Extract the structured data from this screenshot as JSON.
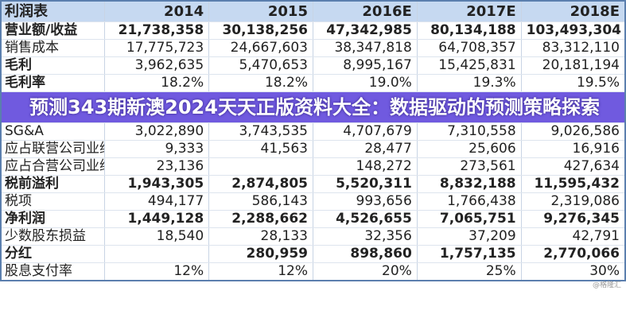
{
  "table": {
    "headers": [
      "利润表",
      "2014",
      "2015",
      "2016E",
      "2017E",
      "2018E"
    ],
    "rows": [
      {
        "label": "营业额/收益",
        "values": [
          "21,738,358",
          "30,138,256",
          "47,342,985",
          "80,134,188",
          "103,493,304"
        ],
        "style": "b bv"
      },
      {
        "label": "销售成本",
        "values": [
          "17,775,723",
          "24,667,603",
          "38,347,818",
          "64,708,357",
          "83,312,110"
        ],
        "style": ""
      },
      {
        "label": "毛利",
        "values": [
          "3,962,635",
          "5,470,653",
          "8,995,167",
          "15,425,831",
          "20,181,194"
        ],
        "style": "b"
      },
      {
        "label": "毛利率",
        "values": [
          "18.2%",
          "18.2%",
          "19.0%",
          "19.3%",
          "19.5%"
        ],
        "style": "b"
      },
      {
        "label": "SG&A",
        "values": [
          "3,022,890",
          "3,743,535",
          "4,707,679",
          "7,310,558",
          "9,026,586"
        ],
        "style": ""
      },
      {
        "label": "应占联营公司业绩",
        "values": [
          "9,333",
          "41,563",
          "28,477",
          "25,606",
          "16,916"
        ],
        "style": ""
      },
      {
        "label": "应占合营公司业绩",
        "values": [
          "23,136",
          "",
          "148,272",
          "273,561",
          "427,634"
        ],
        "style": ""
      },
      {
        "label": "税前溢利",
        "values": [
          "1,943,305",
          "2,874,805",
          "5,520,311",
          "8,832,188",
          "11,595,432"
        ],
        "style": "b bv"
      },
      {
        "label": "税项",
        "values": [
          "494,177",
          "586,143",
          "993,656",
          "1,766,438",
          "2,319,086"
        ],
        "style": ""
      },
      {
        "label": "净利润",
        "values": [
          "1,449,128",
          "2,288,662",
          "4,526,655",
          "7,065,751",
          "9,276,345"
        ],
        "style": "b bv"
      },
      {
        "label": "少数股东损益",
        "values": [
          "18,540",
          "28,133",
          "32,356",
          "37,209",
          "42,791"
        ],
        "style": ""
      },
      {
        "label": "分红",
        "values": [
          "",
          "280,959",
          "898,860",
          "1,757,135",
          "2,770,066"
        ],
        "style": "b bv"
      },
      {
        "label": "股息支付率",
        "values": [
          "12%",
          "12%",
          "20%",
          "25%",
          "30%"
        ],
        "style": ""
      }
    ]
  },
  "banner": {
    "title": "预测343期新澳2024天天正版资料大全：数据驱动的预测策略探索"
  },
  "watermark": "@格隆汇"
}
